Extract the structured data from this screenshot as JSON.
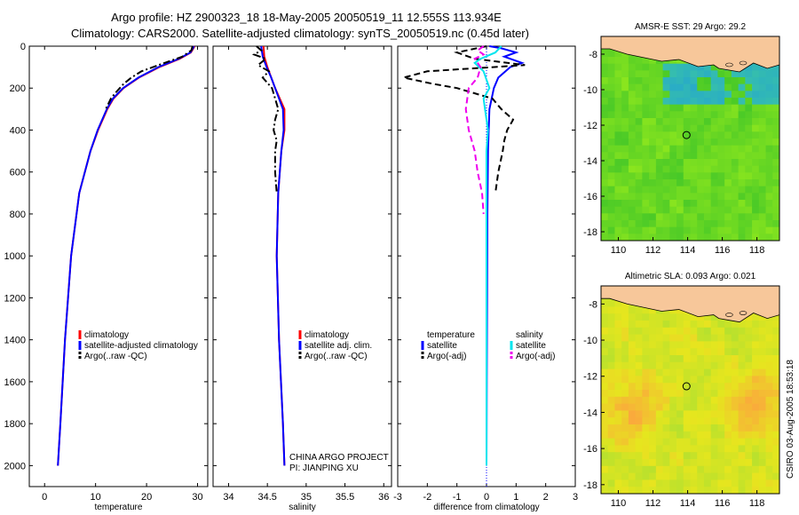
{
  "figure": {
    "title_line1": "Argo profile: HZ 2900323_18 18-May-2005 20050519_11 12.555S 113.934E",
    "title_line2": "Climatology: CARS2000. Satellite-adjusted climatology: synTS_20050519.nc (0.45d later)",
    "side_stamp": "CSIRO 03-Aug-2005 18:53:18",
    "credit_line1": "CHINA ARGO PROJECT",
    "credit_line2": "PI: JIANPING XU"
  },
  "colors": {
    "climatology": "#ff0000",
    "satellite": "#0000ff",
    "argo": "#000000",
    "sal_satellite": "#00e5ee",
    "sal_argo": "#ee00ee",
    "land": "#f7c79a"
  },
  "chart_data": [
    {
      "type": "line",
      "id": "temperature",
      "xlabel": "temperature",
      "ylabel": "",
      "xlim": [
        -3,
        32
      ],
      "ylim": [
        2100,
        0
      ],
      "xticks": [
        0,
        10,
        20,
        30
      ],
      "yticks": [
        0,
        200,
        400,
        600,
        800,
        1000,
        1200,
        1400,
        1600,
        1800,
        2000
      ],
      "legend": [
        "climatology",
        "satellite-adjusted climatology",
        "Argo(..raw -QC)"
      ],
      "legend_loc": "lower-right",
      "series": [
        {
          "name": "climatology",
          "color": "#ff0000",
          "style": "solid",
          "depth": [
            0,
            10,
            30,
            60,
            80,
            100,
            150,
            200,
            250,
            300,
            400,
            500,
            700,
            1000,
            1400,
            1800,
            2000
          ],
          "values": [
            29.4,
            29.2,
            28.7,
            26.5,
            24.5,
            22.5,
            18.5,
            15.5,
            13.5,
            12.3,
            10.5,
            9.0,
            6.8,
            5.2,
            4.0,
            3.1,
            2.6
          ]
        },
        {
          "name": "satellite-adjusted climatology",
          "color": "#0000ff",
          "style": "solid",
          "depth": [
            0,
            10,
            30,
            60,
            80,
            100,
            150,
            200,
            250,
            300,
            400,
            500,
            700,
            1000,
            1400,
            1800,
            2000
          ],
          "values": [
            29.3,
            29.1,
            28.6,
            26.3,
            24.3,
            22.3,
            18.4,
            15.4,
            13.4,
            12.2,
            10.4,
            9.0,
            6.8,
            5.2,
            4.0,
            3.1,
            2.6
          ]
        },
        {
          "name": "Argo(..raw -QC)",
          "color": "#000000",
          "style": "dashdot",
          "depth": [
            0,
            20,
            50,
            80,
            120,
            150,
            180,
            220,
            250,
            300
          ],
          "values": [
            29.0,
            28.8,
            27.0,
            23.5,
            19.0,
            17.0,
            15.5,
            14.0,
            13.0,
            12.0
          ]
        }
      ]
    },
    {
      "type": "line",
      "id": "salinity",
      "xlabel": "salinity",
      "ylabel": "",
      "xlim": [
        33.8,
        36.1
      ],
      "ylim": [
        2100,
        0
      ],
      "xticks": [
        34,
        34.5,
        35,
        35.5,
        36
      ],
      "legend": [
        "climatology",
        "satellite adj. clim.",
        "Argo(..raw -QC)"
      ],
      "legend_loc": "lower-right",
      "series": [
        {
          "name": "climatology",
          "color": "#ff0000",
          "style": "solid",
          "depth": [
            0,
            50,
            100,
            150,
            200,
            300,
            400,
            500,
            700,
            1000,
            1400,
            1800,
            2000
          ],
          "values": [
            34.45,
            34.46,
            34.5,
            34.55,
            34.6,
            34.72,
            34.72,
            34.68,
            34.64,
            34.62,
            34.65,
            34.7,
            34.72
          ]
        },
        {
          "name": "satellite adj. clim.",
          "color": "#0000ff",
          "style": "solid",
          "depth": [
            0,
            50,
            100,
            150,
            200,
            300,
            400,
            500,
            700,
            1000,
            1400,
            1800,
            2000
          ],
          "values": [
            34.42,
            34.44,
            34.49,
            34.55,
            34.6,
            34.7,
            34.71,
            34.68,
            34.64,
            34.62,
            34.65,
            34.7,
            34.72
          ]
        },
        {
          "name": "Argo(..raw -QC)",
          "color": "#000000",
          "style": "dashdot",
          "depth": [
            0,
            20,
            40,
            60,
            90,
            120,
            150,
            200,
            250,
            300,
            350,
            400,
            450,
            500,
            600,
            700
          ],
          "values": [
            34.36,
            34.42,
            34.33,
            34.48,
            34.38,
            34.52,
            34.44,
            34.56,
            34.6,
            34.64,
            34.6,
            34.58,
            34.62,
            34.6,
            34.6,
            34.62
          ]
        }
      ]
    },
    {
      "type": "line",
      "id": "difference",
      "xlabel": "difference from climatology",
      "ylabel": "",
      "xlim": [
        -3,
        3
      ],
      "ylim": [
        2100,
        0
      ],
      "xticks": [
        -3,
        -2,
        -1,
        0,
        1,
        2,
        3
      ],
      "legend_left": [
        "temperature",
        "satellite",
        "Argo(-adj)"
      ],
      "legend_right": [
        "salinity",
        "satellite",
        "Argo(-adj)"
      ],
      "legend_loc": "lower-center",
      "series": [
        {
          "name": "temperature satellite",
          "color": "#0000ff",
          "style": "solid",
          "depth": [
            0,
            10,
            30,
            50,
            80,
            100,
            150,
            200,
            300,
            500,
            800,
            1200,
            1600,
            2000
          ],
          "values": [
            0.1,
            0.5,
            1.0,
            0.6,
            1.2,
            0.8,
            0.4,
            0.25,
            0.1,
            0.05,
            0.03,
            0.02,
            0.01,
            0.0
          ]
        },
        {
          "name": "temperature Argo(-adj)",
          "color": "#000000",
          "style": "dashed",
          "depth": [
            0,
            30,
            60,
            90,
            120,
            150,
            180,
            200,
            250,
            300,
            350,
            400,
            450,
            500,
            600,
            700
          ],
          "values": [
            0.0,
            -1.0,
            -0.4,
            1.3,
            -2.0,
            -2.8,
            -1.8,
            -1.0,
            0.2,
            0.5,
            0.9,
            0.7,
            0.6,
            0.55,
            0.4,
            0.3
          ]
        },
        {
          "name": "salinity satellite",
          "color": "#00e5ee",
          "style": "solid",
          "depth": [
            0,
            30,
            60,
            80,
            120,
            160,
            200,
            250,
            300,
            400,
            500,
            800,
            1200,
            1600,
            2000
          ],
          "values": [
            0.5,
            0.3,
            -0.2,
            -0.4,
            -0.1,
            0.0,
            0.1,
            -0.1,
            -0.05,
            0.05,
            0.0,
            0.0,
            0.0,
            0.0,
            0.0
          ]
        },
        {
          "name": "salinity Argo(-adj)",
          "color": "#ee00ee",
          "style": "dashed",
          "depth": [
            0,
            20,
            40,
            60,
            100,
            150,
            200,
            300,
            400,
            500,
            600,
            700,
            800
          ],
          "values": [
            -0.1,
            -0.3,
            -0.1,
            -0.4,
            -0.2,
            -0.3,
            -0.6,
            -0.7,
            -0.6,
            -0.4,
            -0.3,
            -0.15,
            -0.1
          ]
        }
      ]
    },
    {
      "type": "heatmap",
      "id": "sst-map",
      "title": "AMSR-E SST: 29 Argo: 29.2",
      "xlim": [
        109,
        119.3
      ],
      "ylim": [
        -18.5,
        -7
      ],
      "xticks": [
        110,
        112,
        114,
        116,
        118
      ],
      "yticks": [
        -8,
        -10,
        -12,
        -14,
        -16,
        -18
      ],
      "marker": {
        "lon": 113.934,
        "lat": -12.555
      }
    },
    {
      "type": "heatmap",
      "id": "sla-map",
      "title": "Altimetric SLA: 0.093 Argo: 0.021",
      "xlim": [
        109,
        119.3
      ],
      "ylim": [
        -18.5,
        -7
      ],
      "xticks": [
        110,
        112,
        114,
        116,
        118
      ],
      "yticks": [
        -8,
        -10,
        -12,
        -14,
        -16,
        -18
      ],
      "marker": {
        "lon": 113.934,
        "lat": -12.555
      }
    }
  ]
}
